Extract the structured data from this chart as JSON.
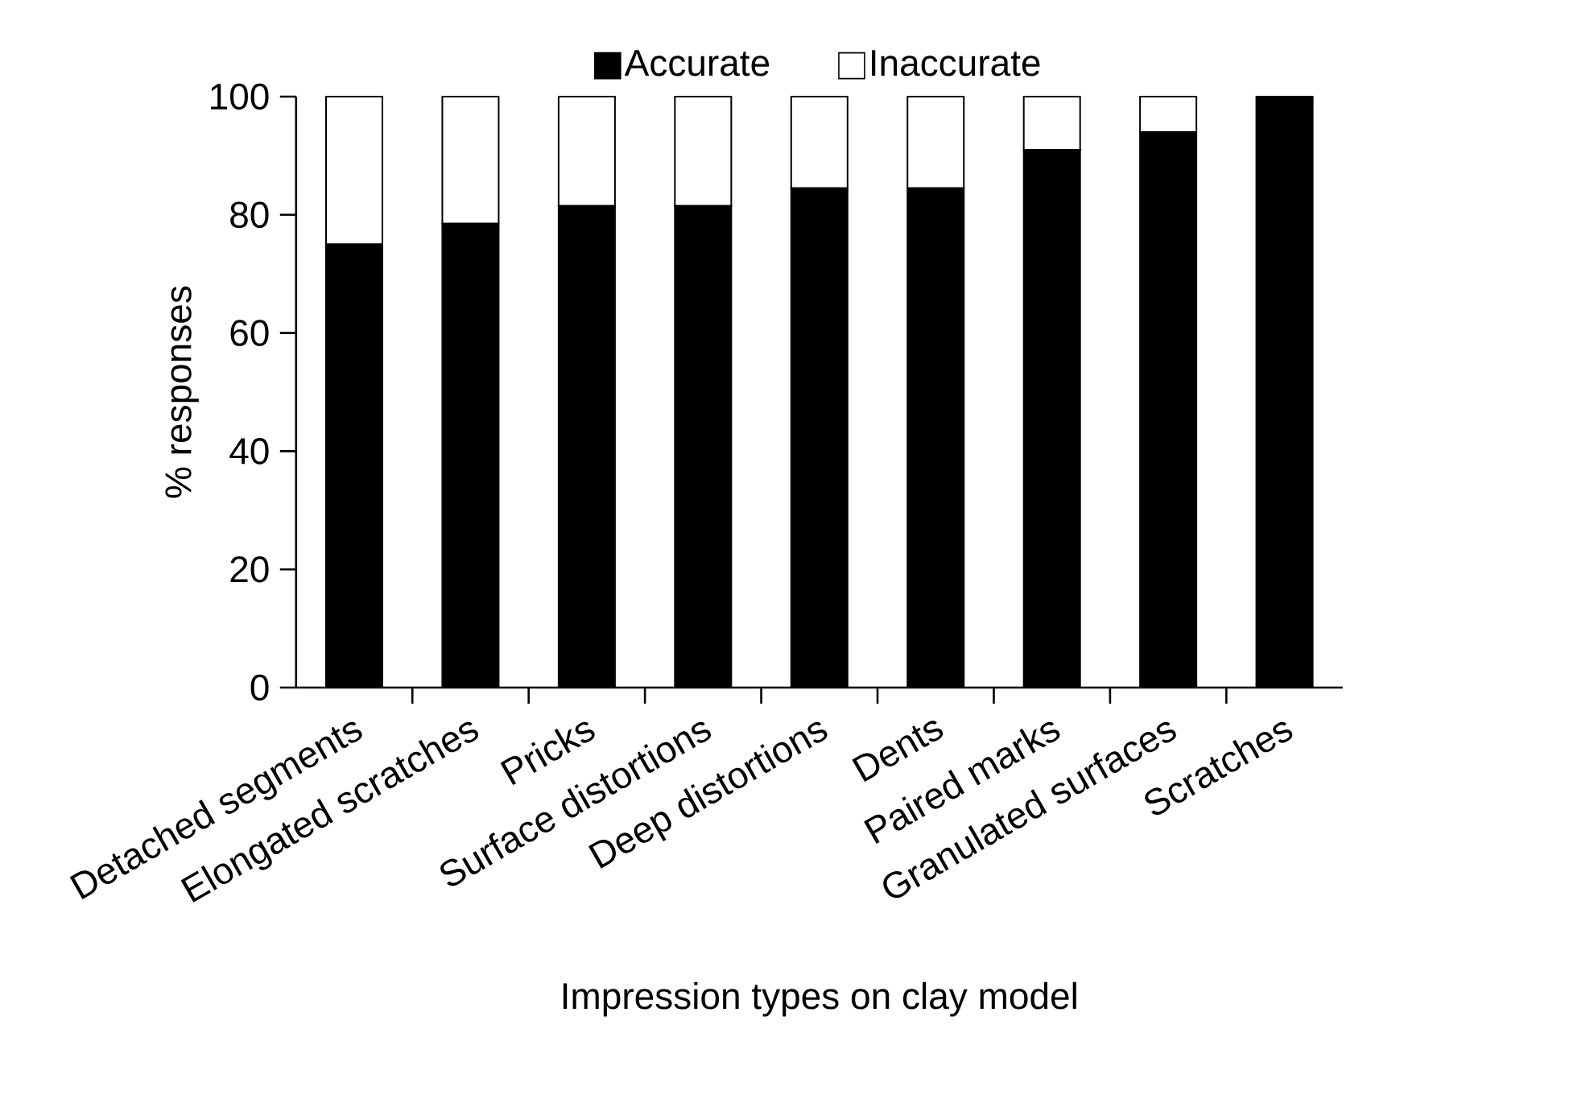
{
  "chart_data": {
    "type": "bar",
    "stacked": true,
    "xlabel": "Impression types on clay model",
    "ylabel": "% responses",
    "categories": [
      "Detached segments",
      "Elongated scratches",
      "Pricks",
      "Surface distortions",
      "Deep distortions",
      "Dents",
      "Paired marks",
      "Granulated surfaces",
      "Scratches"
    ],
    "series": [
      {
        "name": "Accurate",
        "color": "#000000",
        "values": [
          75,
          78.5,
          81.5,
          81.5,
          84.5,
          84.5,
          91,
          94,
          100
        ]
      },
      {
        "name": "Inaccurate",
        "color": "#ffffff",
        "values": [
          25,
          21.5,
          18.5,
          18.5,
          15.5,
          15.5,
          9,
          6,
          0
        ]
      }
    ],
    "ylim": [
      0,
      100
    ],
    "yticks": [
      0,
      20,
      40,
      60,
      80,
      100
    ],
    "grid": false,
    "legend": "top"
  }
}
